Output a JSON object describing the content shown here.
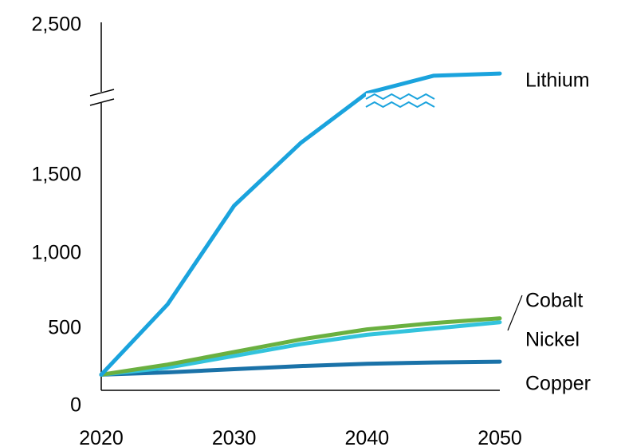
{
  "chart_data": {
    "type": "line",
    "title": "",
    "xlabel": "",
    "ylabel": "",
    "x": [
      2020,
      2025,
      2030,
      2035,
      2040,
      2045,
      2050
    ],
    "x_ticks": [
      "2020",
      "2030",
      "2040",
      "2050"
    ],
    "y_ticks": [
      "0",
      "500",
      "1,000",
      "1,500",
      "2,500"
    ],
    "ylim": [
      0,
      2500
    ],
    "y_axis_break": true,
    "grid": false,
    "legend": "inline labels at right end of lines",
    "series": [
      {
        "name": "Lithium",
        "color": "#1aa3dd",
        "values": [
          100,
          550,
          1180,
          1580,
          1900,
          2430,
          2470
        ]
      },
      {
        "name": "Cobalt",
        "color": "#6ab040",
        "values": [
          100,
          165,
          245,
          325,
          390,
          430,
          460
        ]
      },
      {
        "name": "Nickel",
        "color": "#33c3dc",
        "values": [
          100,
          145,
          220,
          295,
          355,
          395,
          435
        ]
      },
      {
        "name": "Copper",
        "color": "#1a72a8",
        "values": [
          100,
          115,
          135,
          155,
          170,
          178,
          183
        ]
      }
    ]
  }
}
